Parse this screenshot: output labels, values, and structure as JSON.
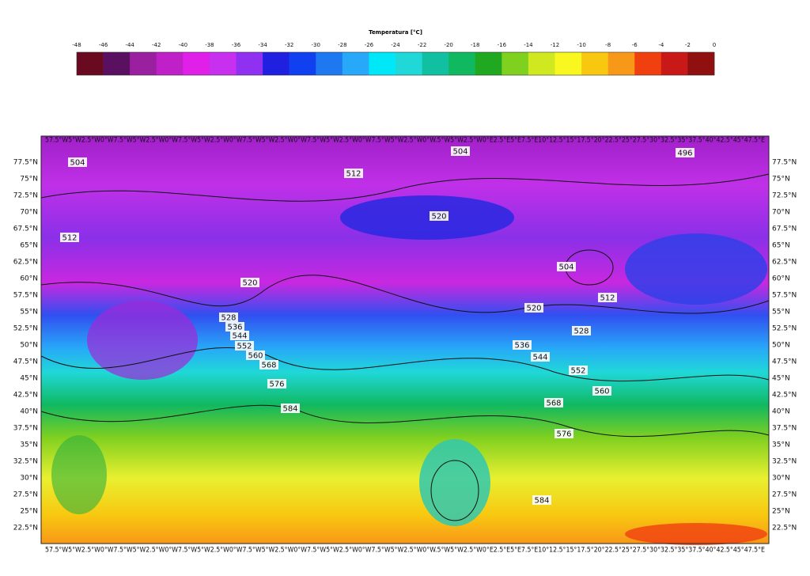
{
  "colorbar": {
    "title": "Temperatura [°C]",
    "ticks": [
      -48,
      -46,
      -44,
      -42,
      -40,
      -38,
      -36,
      -34,
      -32,
      -30,
      -28,
      -26,
      -24,
      -22,
      -20,
      -18,
      -16,
      -14,
      -12,
      -10,
      -8,
      -6,
      -4,
      -2,
      0
    ],
    "colors": [
      "#6a0a20",
      "#5a1060",
      "#9a20a0",
      "#c020c8",
      "#e020e8",
      "#c830f0",
      "#9030f0",
      "#2020e0",
      "#1040f0",
      "#1e78f0",
      "#28a8f8",
      "#00e8f8",
      "#20d8d8",
      "#10c0a0",
      "#10b860",
      "#20a820",
      "#80d020",
      "#d0e820",
      "#f8f820",
      "#f8c810",
      "#f89818",
      "#f04010",
      "#c81818",
      "#901010"
    ]
  },
  "map": {
    "lon_labels_top": "57.5°W5°W2.5°W0°W7.5°W5°W2.5°W0°W7.5°W5°W2.5°W0°W7.5°W5°W2.5°W0°W7.5°W5°W2.5°W0°W7.5°W5°W2.5°W0°W.5°W5°W2.5°W0°E2.5°E5°E7.5°E10°12.5°15°17.5°20°22.5°25°27.5°30°32.5°35°37.5°40°42.5°45°47.5°E",
    "lon_labels_bottom": "57.5°W5°W2.5°W0°W7.5°W5°W2.5°W0°W7.5°W5°W2.5°W0°W7.5°W5°W2.5°W0°W7.5°W5°W2.5°W0°W7.5°W5°W2.5°W0°W.5°W5°W2.5°W0°E2.5°E5°E7.5°E10°12.5°15°17.5°20°22.5°25°27.5°30°32.5°35°37.5°40°42.5°45°47.5°E",
    "lat_labels": [
      "77.5°N",
      "75°N",
      "72.5°N",
      "70°N",
      "67.5°N",
      "65°N",
      "62.5°N",
      "60°N",
      "57.5°N",
      "55°N",
      "52.5°N",
      "50°N",
      "47.5°N",
      "45°N",
      "42.5°N",
      "40°N",
      "37.5°N",
      "35°N",
      "32.5°N",
      "30°N",
      "27.5°N",
      "25°N",
      "22.5°N"
    ],
    "contour_labels": [
      504,
      504,
      496,
      512,
      520,
      512,
      504,
      520,
      512,
      520,
      528,
      528,
      536,
      544,
      552,
      560,
      568,
      576,
      584,
      536,
      544,
      552,
      560,
      568,
      576,
      584
    ]
  }
}
